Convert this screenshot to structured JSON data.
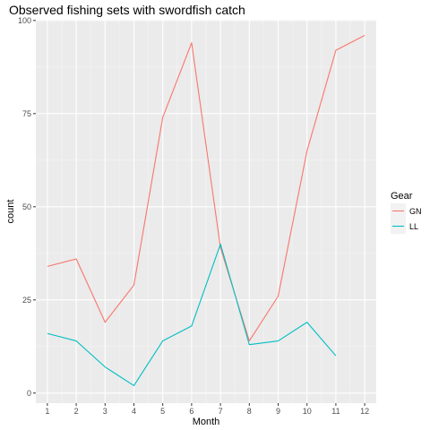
{
  "chart_data": {
    "type": "line",
    "title": "Observed fishing sets with swordfish catch",
    "xlabel": "Month",
    "ylabel": "count",
    "x": [
      1,
      2,
      3,
      4,
      5,
      6,
      7,
      8,
      9,
      10,
      11,
      12
    ],
    "xlim": [
      0.6,
      12.4
    ],
    "ylim": [
      -2.7,
      100.2
    ],
    "y_ticks": [
      0,
      25,
      50,
      75,
      100
    ],
    "grid": true,
    "legend": {
      "title": "Gear",
      "position": "right"
    },
    "series": [
      {
        "name": "GN",
        "color": "#F8766D",
        "x": [
          1,
          2,
          3,
          4,
          5,
          6,
          7,
          8,
          9,
          10,
          11,
          12
        ],
        "values": [
          34,
          36,
          19,
          29,
          74,
          94,
          39,
          14,
          26,
          65,
          92,
          96
        ]
      },
      {
        "name": "LL",
        "color": "#00BFC4",
        "x": [
          1,
          2,
          3,
          4,
          5,
          6,
          7,
          8,
          9,
          10,
          11
        ],
        "values": [
          16,
          14,
          7,
          2,
          14,
          18,
          40,
          13,
          14,
          19,
          10
        ]
      }
    ]
  }
}
